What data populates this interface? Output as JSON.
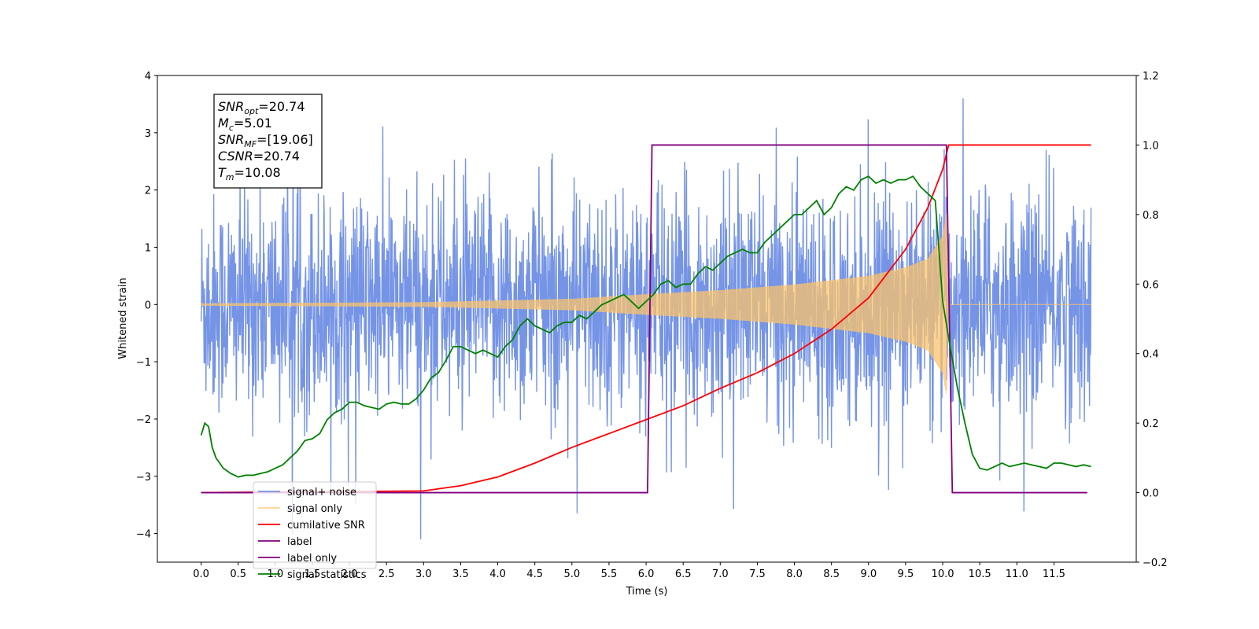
{
  "chart_data": {
    "type": "line",
    "xlabel": "Time (s)",
    "ylabel_left": "Whitened strain",
    "ylabel_right": "",
    "xlim": [
      -0.59,
      12.61
    ],
    "ylim_left": [
      -4.5,
      4.0
    ],
    "ylim_right": [
      -0.2,
      1.2
    ],
    "xticks": [
      "0.0",
      "0.5",
      "1.0",
      "1.5",
      "2.0",
      "2.5",
      "3.0",
      "3.5",
      "4.0",
      "4.5",
      "5.0",
      "5.5",
      "6.0",
      "6.5",
      "7.0",
      "7.5",
      "8.0",
      "8.5",
      "9.0",
      "9.5",
      "10.0",
      "10.5",
      "11.0",
      "11.5"
    ],
    "yticks_left": [
      "4",
      "3",
      "2",
      "1",
      "0",
      "−1",
      "−2",
      "−3",
      "−4"
    ],
    "yticks_right": [
      "1.2",
      "1.0",
      "0.8",
      "0.6",
      "0.4",
      "0.2",
      "0.0",
      "−0.2"
    ],
    "grid": false,
    "legend_position": "lower-left",
    "series": [
      {
        "name": "signal+ noise",
        "color": "#7594e6",
        "axis": "left",
        "kind": "noise",
        "x_range": [
          0.0,
          12.0
        ],
        "amplitude_typical": 1.3,
        "amplitude_max": 3.6
      },
      {
        "name": "signal only",
        "color": "#fbc36b",
        "axis": "left",
        "kind": "chirp",
        "x_range": [
          0.0,
          12.0
        ],
        "merger_time": 10.08,
        "envelope": [
          [
            0.0,
            0.02
          ],
          [
            3.0,
            0.04
          ],
          [
            5.0,
            0.1
          ],
          [
            6.0,
            0.18
          ],
          [
            7.0,
            0.25
          ],
          [
            8.0,
            0.35
          ],
          [
            9.0,
            0.5
          ],
          [
            9.5,
            0.65
          ],
          [
            9.8,
            0.8
          ],
          [
            10.0,
            1.2
          ],
          [
            10.05,
            1.6
          ],
          [
            10.08,
            0.0
          ],
          [
            12.0,
            0.0
          ]
        ]
      },
      {
        "name": "cumilative SNR",
        "color": "#ff0000",
        "axis": "right",
        "x": [
          0.0,
          3.0,
          3.5,
          4.0,
          4.5,
          5.0,
          5.5,
          6.0,
          6.5,
          7.0,
          7.5,
          8.0,
          8.5,
          9.0,
          9.5,
          9.8,
          10.0,
          10.08,
          12.0
        ],
        "values": [
          0.0,
          0.005,
          0.02,
          0.045,
          0.085,
          0.13,
          0.17,
          0.21,
          0.25,
          0.3,
          0.345,
          0.4,
          0.47,
          0.56,
          0.7,
          0.82,
          0.93,
          1.0,
          1.0
        ]
      },
      {
        "name": "label",
        "color": "#800080",
        "axis": "right",
        "x": [
          0.0,
          6.02,
          6.08,
          10.05,
          10.13,
          11.95
        ],
        "values": [
          0.0,
          0.0,
          1.0,
          1.0,
          0.0,
          0.0
        ]
      },
      {
        "name": "label only",
        "color": "#800080",
        "axis": "right",
        "x": [],
        "values": []
      },
      {
        "name": "signal statistics",
        "color": "#008000",
        "axis": "right",
        "x": [
          0.0,
          0.05,
          0.1,
          0.15,
          0.2,
          0.3,
          0.4,
          0.5,
          0.6,
          0.7,
          0.8,
          0.9,
          1.0,
          1.1,
          1.2,
          1.3,
          1.4,
          1.5,
          1.6,
          1.7,
          1.8,
          1.9,
          2.0,
          2.1,
          2.2,
          2.3,
          2.4,
          2.5,
          2.6,
          2.7,
          2.8,
          2.9,
          3.0,
          3.1,
          3.2,
          3.3,
          3.4,
          3.5,
          3.6,
          3.7,
          3.8,
          3.9,
          4.0,
          4.1,
          4.2,
          4.3,
          4.4,
          4.5,
          4.6,
          4.7,
          4.8,
          4.9,
          5.0,
          5.1,
          5.2,
          5.3,
          5.4,
          5.5,
          5.6,
          5.7,
          5.8,
          5.9,
          6.0,
          6.1,
          6.2,
          6.3,
          6.4,
          6.5,
          6.6,
          6.7,
          6.8,
          6.9,
          7.0,
          7.1,
          7.2,
          7.3,
          7.4,
          7.5,
          7.6,
          7.7,
          7.8,
          7.9,
          8.0,
          8.1,
          8.2,
          8.3,
          8.4,
          8.5,
          8.6,
          8.7,
          8.8,
          8.9,
          9.0,
          9.1,
          9.2,
          9.3,
          9.4,
          9.5,
          9.6,
          9.7,
          9.8,
          9.9,
          10.0,
          10.1,
          10.2,
          10.3,
          10.4,
          10.5,
          10.6,
          10.7,
          10.8,
          10.9,
          11.0,
          11.1,
          11.2,
          11.3,
          11.4,
          11.5,
          11.6,
          11.7,
          11.8,
          11.9,
          12.0
        ],
        "values": [
          0.165,
          0.2,
          0.19,
          0.13,
          0.1,
          0.07,
          0.055,
          0.045,
          0.05,
          0.05,
          0.055,
          0.06,
          0.07,
          0.08,
          0.1,
          0.12,
          0.15,
          0.155,
          0.17,
          0.21,
          0.23,
          0.24,
          0.26,
          0.26,
          0.25,
          0.245,
          0.24,
          0.255,
          0.26,
          0.255,
          0.255,
          0.27,
          0.295,
          0.33,
          0.345,
          0.38,
          0.42,
          0.42,
          0.41,
          0.4,
          0.41,
          0.4,
          0.39,
          0.42,
          0.44,
          0.48,
          0.5,
          0.48,
          0.47,
          0.46,
          0.48,
          0.49,
          0.49,
          0.51,
          0.5,
          0.52,
          0.54,
          0.55,
          0.56,
          0.57,
          0.55,
          0.53,
          0.55,
          0.57,
          0.6,
          0.61,
          0.59,
          0.6,
          0.6,
          0.63,
          0.65,
          0.64,
          0.66,
          0.68,
          0.69,
          0.7,
          0.69,
          0.69,
          0.72,
          0.74,
          0.76,
          0.78,
          0.8,
          0.8,
          0.82,
          0.84,
          0.8,
          0.82,
          0.86,
          0.88,
          0.87,
          0.9,
          0.91,
          0.89,
          0.9,
          0.89,
          0.9,
          0.9,
          0.91,
          0.88,
          0.86,
          0.84,
          0.55,
          0.42,
          0.3,
          0.2,
          0.11,
          0.07,
          0.065,
          0.075,
          0.085,
          0.075,
          0.08,
          0.085,
          0.08,
          0.075,
          0.07,
          0.085,
          0.085,
          0.08,
          0.075,
          0.08,
          0.075
        ]
      }
    ]
  },
  "annotation": {
    "lines": [
      {
        "main": "SNR",
        "sub": "opt",
        "value": "=20.74"
      },
      {
        "main": "M",
        "sub": "c",
        "value": "=5.01"
      },
      {
        "main": "SNR",
        "sub": "MF",
        "value": "=[19.06]"
      },
      {
        "main": "CSNR",
        "sub": "",
        "value": "=20.74"
      },
      {
        "main": "T",
        "sub": "m",
        "value": "=10.08"
      }
    ]
  }
}
